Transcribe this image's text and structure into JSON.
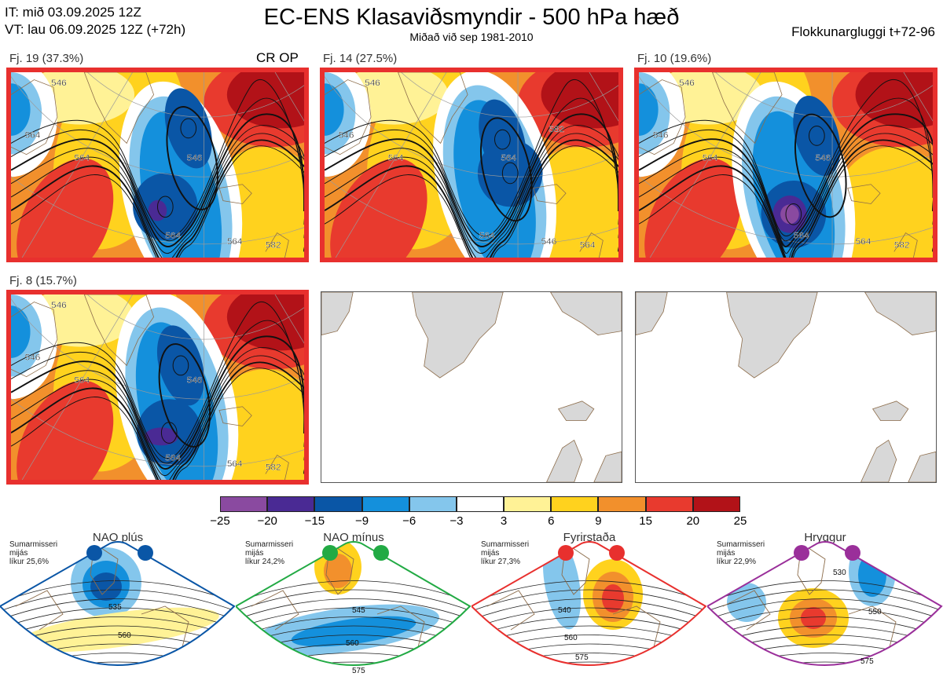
{
  "header": {
    "init_line": "IT: mið 03.09.2025 12Z",
    "valid_line": "VT: lau 06.09.2025 12Z  (+72h)",
    "title": "EC-ENS Klasaviðsmyndir - 500 hPa hæð",
    "subtitle": "Miðað við sep 1981-2010",
    "window": "Flokkunargluggi t+72-96"
  },
  "panels": [
    {
      "label": "Fj. 19 (37.3%)",
      "tag": "CR OP",
      "contours": [
        "546",
        "564",
        "564",
        "546",
        "564",
        "564",
        "582"
      ]
    },
    {
      "label": "Fj. 14 (27.5%)",
      "tag": "",
      "contours": [
        "546",
        "546",
        "564",
        "564",
        "564",
        "546",
        "564",
        "582"
      ]
    },
    {
      "label": "Fj. 10 (19.6%)",
      "tag": "",
      "contours": [
        "546",
        "546",
        "564",
        "546",
        "564",
        "564",
        "582"
      ]
    },
    {
      "label": "Fj. 8 (15.7%)",
      "tag": "",
      "contours": [
        "546",
        "546",
        "564",
        "546",
        "564",
        "564",
        "582"
      ]
    }
  ],
  "colors": {
    "highlight": "#e8302e",
    "land": "#d8d8d8",
    "coast": "#8c6c4a"
  },
  "chart_data": {
    "type": "heatmap",
    "title": "EC-ENS Klasaviðsmyndir - 500 hPa hæð",
    "subtitle": "Miðað við sep 1981-2010",
    "variable": "500 hPa geopotential height anomaly (dam)",
    "clusters": [
      {
        "name": "Fj. 19",
        "share_pct": 37.3
      },
      {
        "name": "Fj. 14",
        "share_pct": 27.5
      },
      {
        "name": "Fj. 10",
        "share_pct": 19.6
      },
      {
        "name": "Fj. 8",
        "share_pct": 15.7
      }
    ],
    "colorbar": {
      "ticks": [
        "−25",
        "−20",
        "−15",
        "−9",
        "−6",
        "−3",
        "3",
        "6",
        "9",
        "15",
        "20",
        "25"
      ],
      "colors": [
        "#8a4aa0",
        "#4a2a94",
        "#0a56a6",
        "#1490dc",
        "#84c6ec",
        "#ffffff",
        "#fff296",
        "#ffd21e",
        "#f2902c",
        "#e83a2e",
        "#b21218"
      ]
    },
    "regimes": [
      {
        "name": "NAO plús",
        "info": [
          "Sumarmisseri",
          "mijás",
          "líkur 25,6%"
        ],
        "color": "#0a56a6",
        "contour_labels": [
          "535",
          "560"
        ]
      },
      {
        "name": "NAO mínus",
        "info": [
          "Sumarmisseri",
          "mijás",
          "líkur 24,2%"
        ],
        "color": "#22aa44",
        "contour_labels": [
          "545",
          "560",
          "575"
        ]
      },
      {
        "name": "Fyrirstaða",
        "info": [
          "Sumarmisseri",
          "mijás",
          "líkur 27,3%"
        ],
        "color": "#e8302e",
        "contour_labels": [
          "540",
          "560",
          "575"
        ]
      },
      {
        "name": "Hryggur",
        "info": [
          "Sumarmisseri",
          "mijás",
          "líkur 22,9%"
        ],
        "color": "#9a2f9a",
        "contour_labels": [
          "530",
          "550",
          "575"
        ]
      }
    ]
  }
}
